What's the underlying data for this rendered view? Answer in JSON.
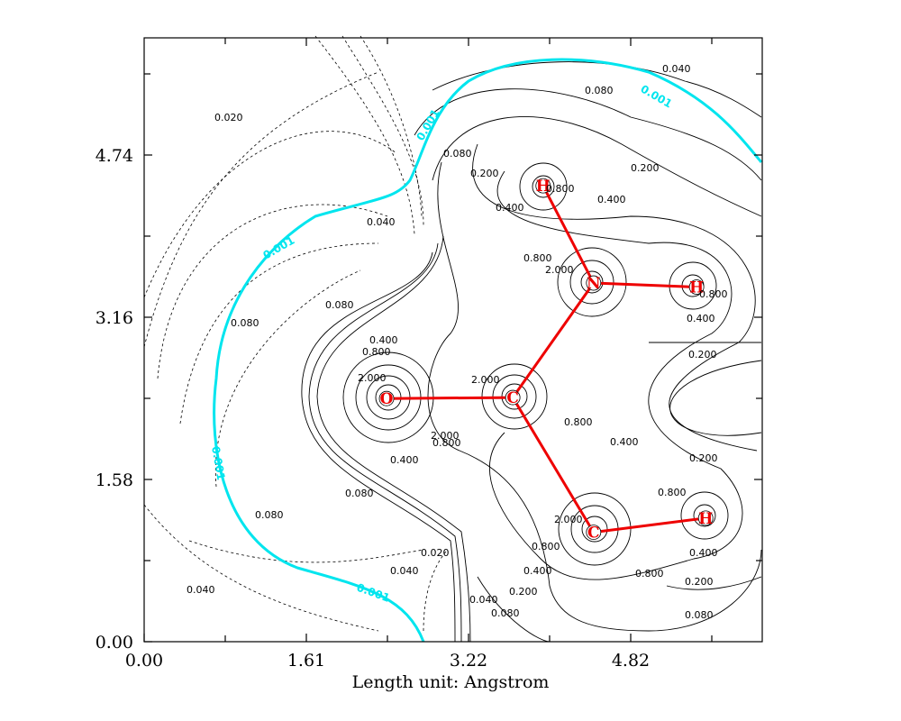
{
  "chart_data": {
    "type": "contour",
    "xlabel": "Length unit: Angstrom",
    "ylabel": "",
    "xlim": [
      0.0,
      6.12
    ],
    "ylim": [
      0.0,
      5.96
    ],
    "x_ticks": [
      "0.00",
      "1.61",
      "3.22",
      "4.82"
    ],
    "y_ticks": [
      "0.00",
      "1.58",
      "3.16",
      "4.74"
    ],
    "grid": false,
    "contour_levels": [
      "0.001",
      "0.020",
      "0.040",
      "0.080",
      "0.200",
      "0.400",
      "0.800",
      "2.000"
    ],
    "highlight_level": "0.001",
    "atoms": [
      {
        "label": "O",
        "x": 2.4,
        "y": 2.4
      },
      {
        "label": "C",
        "x": 3.65,
        "y": 2.41
      },
      {
        "label": "N",
        "x": 4.45,
        "y": 3.54
      },
      {
        "label": "H",
        "x": 3.95,
        "y": 4.5
      },
      {
        "label": "H",
        "x": 5.47,
        "y": 3.5
      },
      {
        "label": "C",
        "x": 4.45,
        "y": 1.08
      },
      {
        "label": "H",
        "x": 5.56,
        "y": 1.22
      }
    ],
    "bonds": [
      [
        0,
        1
      ],
      [
        1,
        2
      ],
      [
        2,
        3
      ],
      [
        2,
        4
      ],
      [
        1,
        5
      ],
      [
        5,
        6
      ]
    ],
    "colors": {
      "bond": "#ee0000",
      "highlight_contour": "#00e5ee",
      "contour": "#000000"
    }
  }
}
